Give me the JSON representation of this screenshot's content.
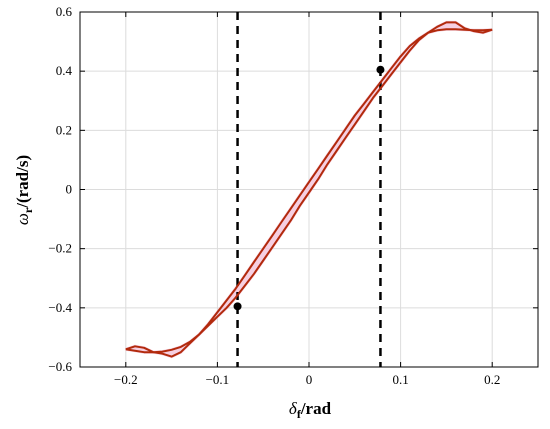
{
  "chart_data": {
    "type": "line",
    "xlabel": {
      "symbol": "δ",
      "subscript": "f",
      "unit": "/rad"
    },
    "ylabel": {
      "symbol": "ω",
      "subscript": "r",
      "unit": "/(rad/s)"
    },
    "xlim": [
      -0.25,
      0.25
    ],
    "ylim": [
      -0.6,
      0.6
    ],
    "xticks": [
      -0.2,
      -0.1,
      0,
      0.1,
      0.2
    ],
    "xtick_labels": [
      "−0.2",
      "−0.1",
      "0",
      "0.1",
      "0.2"
    ],
    "yticks": [
      -0.6,
      -0.4,
      -0.2,
      0,
      0.2,
      0.4,
      0.6
    ],
    "ytick_labels": [
      "−0.6",
      "−0.4",
      "−0.2",
      "0",
      "0.2",
      "0.4",
      "0.6"
    ],
    "grid": true,
    "colors": {
      "curve": "#b22a0c",
      "band": "#f4c0d8",
      "marker": "#000000",
      "grid": "#dcdcdc"
    },
    "series": [
      {
        "x": [
          -0.2,
          -0.19,
          -0.18,
          -0.17,
          -0.16,
          -0.15,
          -0.14,
          -0.13,
          -0.12,
          -0.11,
          -0.1,
          -0.09,
          -0.08,
          -0.07,
          -0.06,
          -0.05,
          -0.04,
          -0.03,
          -0.02,
          -0.01,
          0,
          0.01,
          0.02,
          0.03,
          0.04,
          0.05,
          0.06,
          0.07,
          0.08,
          0.09,
          0.1,
          0.11,
          0.12,
          0.13,
          0.14,
          0.15,
          0.16,
          0.17,
          0.18,
          0.19,
          0.2
        ],
        "y": [
          -0.54,
          -0.53,
          -0.535,
          -0.55,
          -0.555,
          -0.565,
          -0.55,
          -0.52,
          -0.49,
          -0.46,
          -0.43,
          -0.4,
          -0.365,
          -0.325,
          -0.285,
          -0.24,
          -0.195,
          -0.15,
          -0.105,
          -0.055,
          -0.01,
          0.035,
          0.085,
          0.13,
          0.175,
          0.22,
          0.265,
          0.31,
          0.35,
          0.39,
          0.43,
          0.47,
          0.505,
          0.53,
          0.55,
          0.565,
          0.565,
          0.545,
          0.535,
          0.53,
          0.54
        ]
      },
      {
        "x": [
          -0.2,
          -0.19,
          -0.18,
          -0.17,
          -0.16,
          -0.15,
          -0.14,
          -0.13,
          -0.12,
          -0.11,
          -0.1,
          -0.09,
          -0.08,
          -0.07,
          -0.06,
          -0.05,
          -0.04,
          -0.03,
          -0.02,
          -0.01,
          0,
          0.01,
          0.02,
          0.03,
          0.04,
          0.05,
          0.06,
          0.07,
          0.08,
          0.09,
          0.1,
          0.11,
          0.12,
          0.13,
          0.14,
          0.15,
          0.16,
          0.17,
          0.18,
          0.19,
          0.2
        ],
        "y": [
          -0.54,
          -0.545,
          -0.55,
          -0.55,
          -0.548,
          -0.542,
          -0.532,
          -0.515,
          -0.49,
          -0.455,
          -0.415,
          -0.375,
          -0.335,
          -0.29,
          -0.245,
          -0.2,
          -0.155,
          -0.11,
          -0.065,
          -0.02,
          0.025,
          0.07,
          0.115,
          0.16,
          0.205,
          0.25,
          0.29,
          0.33,
          0.37,
          0.41,
          0.45,
          0.485,
          0.51,
          0.53,
          0.538,
          0.542,
          0.542,
          0.54,
          0.538,
          0.538,
          0.54
        ]
      }
    ],
    "reference_lines": [
      {
        "orientation": "vertical",
        "x": -0.078,
        "style": "dashed"
      },
      {
        "orientation": "vertical",
        "x": 0.078,
        "style": "dashed"
      }
    ],
    "markers": [
      {
        "x": -0.078,
        "y": -0.395
      },
      {
        "x": 0.078,
        "y": 0.405
      }
    ]
  }
}
